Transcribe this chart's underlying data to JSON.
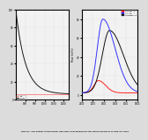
{
  "left_plot": {
    "xlim": [
      700,
      1250
    ],
    "ylim": [
      0,
      100
    ],
    "x_ticks": [
      800,
      900,
      1000,
      1100,
      1200
    ],
    "y_ticks": [
      0,
      20,
      40,
      60,
      80,
      100
    ],
    "decay_peak": 95,
    "flat_y": 6,
    "bg_color": "#f2f2f2",
    "curve_color": "#1a1a1a",
    "flat_color": "#ff8888",
    "grid_color": "#cccccc"
  },
  "right_plot": {
    "xlim": [
      0,
      1
    ],
    "ylim": [
      -5,
      90
    ],
    "y_ticks": [
      0,
      20,
      40,
      60,
      80
    ],
    "x_tick_labels": [
      "2400",
      "0000",
      "0300",
      "1400",
      "1600",
      "1800"
    ],
    "y_label": "Flow (m3/s)",
    "peak_blue": 80,
    "peak_black": 68,
    "peak_red": 15,
    "bg_color": "#f2f2f2",
    "color_blue": "#3333ff",
    "color_black": "#111111",
    "color_red": "#ff2222",
    "grid_color": "#cccccc",
    "legend_colors": [
      "#ff2222",
      "#3333ff",
      "#111111"
    ],
    "legend_labels": [
      "10 year - 1",
      "20 year - 1",
      "All event - 1"
    ]
  },
  "figure": {
    "bg_color": "#dcdcdc",
    "caption": "Figure1. The output of the model HEC-HMS hydrograph for the return period of 10 and 20 years"
  }
}
